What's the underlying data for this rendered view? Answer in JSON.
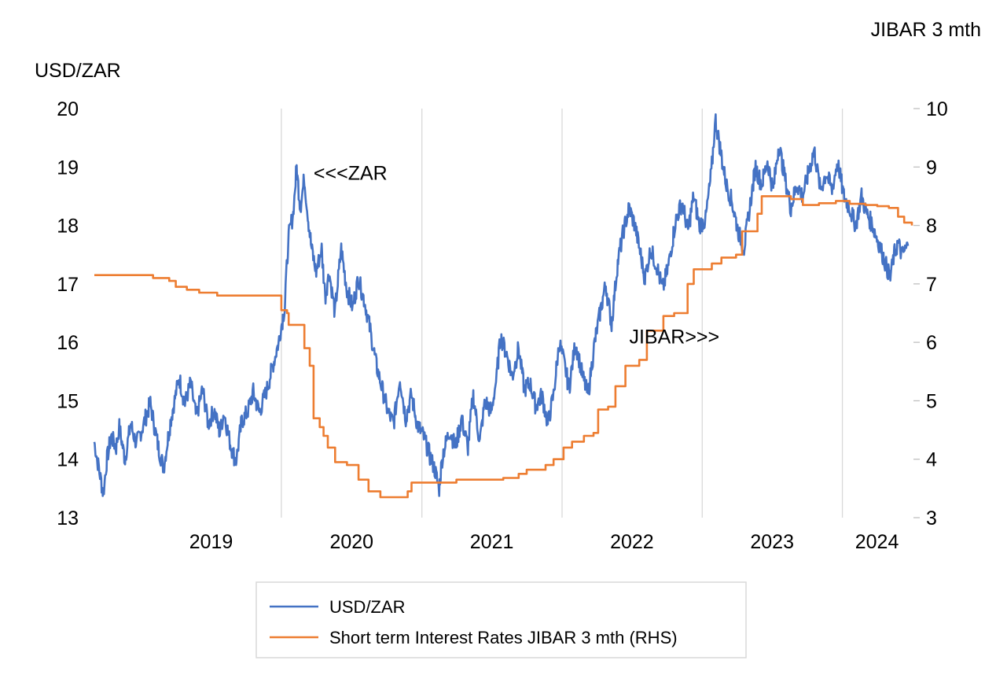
{
  "chart_data": {
    "type": "line",
    "y_left_label": "USD/ZAR",
    "y_right_label": "JIBAR 3 mth",
    "x_ticks": [
      "2019",
      "2020",
      "2021",
      "2022",
      "2023",
      "2024"
    ],
    "y_left_ticks": [
      13,
      14,
      15,
      16,
      17,
      18,
      19,
      20
    ],
    "y_right_ticks": [
      3,
      4,
      5,
      6,
      7,
      8,
      9,
      10
    ],
    "y_left_range": [
      13,
      20
    ],
    "y_right_range": [
      3,
      10
    ],
    "x_range": [
      "2018-09-01",
      "2024-06-30"
    ],
    "grid": "vertical lines at year boundaries",
    "annotations": [
      {
        "text": "<<<ZAR",
        "date": "2020-03-25",
        "value": 18.9,
        "axis": "left"
      },
      {
        "text": "JIBAR>>>",
        "date": "2022-06-25",
        "value": 6.1,
        "axis": "right"
      }
    ],
    "legend": {
      "placement": "bottom",
      "entries": [
        "USD/ZAR",
        "Short term Interest Rates JIBAR 3 mth (RHS)"
      ]
    },
    "colors": {
      "usd_zar": "#4472C4",
      "jibar": "#ED7D31"
    },
    "series": [
      {
        "name": "USD/ZAR",
        "axis": "left",
        "points": [
          [
            "2018-09-01",
            14.3
          ],
          [
            "2018-09-10",
            13.95
          ],
          [
            "2018-09-25",
            13.4
          ],
          [
            "2018-10-03",
            13.95
          ],
          [
            "2018-10-15",
            14.4
          ],
          [
            "2018-10-28",
            14.2
          ],
          [
            "2018-11-05",
            14.55
          ],
          [
            "2018-11-20",
            14.0
          ],
          [
            "2018-12-05",
            14.6
          ],
          [
            "2018-12-20",
            14.25
          ],
          [
            "2019-01-05",
            14.55
          ],
          [
            "2019-01-25",
            14.95
          ],
          [
            "2019-02-15",
            14.2
          ],
          [
            "2019-03-01",
            13.85
          ],
          [
            "2019-03-20",
            14.7
          ],
          [
            "2019-04-10",
            15.4
          ],
          [
            "2019-04-25",
            14.95
          ],
          [
            "2019-05-10",
            15.3
          ],
          [
            "2019-05-25",
            14.7
          ],
          [
            "2019-06-10",
            15.2
          ],
          [
            "2019-06-25",
            14.6
          ],
          [
            "2019-07-10",
            14.85
          ],
          [
            "2019-07-25",
            14.45
          ],
          [
            "2019-08-05",
            14.8
          ],
          [
            "2019-08-20",
            14.3
          ],
          [
            "2019-09-05",
            13.95
          ],
          [
            "2019-09-20",
            14.65
          ],
          [
            "2019-10-05",
            14.8
          ],
          [
            "2019-10-20",
            15.15
          ],
          [
            "2019-11-05",
            14.8
          ],
          [
            "2019-11-25",
            15.2
          ],
          [
            "2019-12-10",
            15.6
          ],
          [
            "2019-12-25",
            16.0
          ],
          [
            "2020-01-10",
            16.6
          ],
          [
            "2020-01-20",
            17.8
          ],
          [
            "2020-02-01",
            18.2
          ],
          [
            "2020-02-10",
            19.0
          ],
          [
            "2020-02-20",
            18.3
          ],
          [
            "2020-03-01",
            18.8
          ],
          [
            "2020-03-10",
            18.2
          ],
          [
            "2020-03-20",
            17.6
          ],
          [
            "2020-04-01",
            17.2
          ],
          [
            "2020-04-15",
            17.6
          ],
          [
            "2020-04-25",
            16.8
          ],
          [
            "2020-05-05",
            17.2
          ],
          [
            "2020-05-20",
            16.5
          ],
          [
            "2020-06-05",
            17.6
          ],
          [
            "2020-06-20",
            16.9
          ],
          [
            "2020-07-05",
            16.6
          ],
          [
            "2020-07-20",
            17.1
          ],
          [
            "2020-08-05",
            16.7
          ],
          [
            "2020-08-20",
            16.2
          ],
          [
            "2020-09-05",
            15.6
          ],
          [
            "2020-09-20",
            15.2
          ],
          [
            "2020-10-05",
            14.8
          ],
          [
            "2020-10-20",
            14.6
          ],
          [
            "2020-11-05",
            15.4
          ],
          [
            "2020-11-20",
            14.7
          ],
          [
            "2020-12-05",
            15.1
          ],
          [
            "2020-12-20",
            14.6
          ],
          [
            "2021-01-05",
            14.4
          ],
          [
            "2021-01-20",
            14.1
          ],
          [
            "2021-02-05",
            13.8
          ],
          [
            "2021-02-15",
            13.5
          ],
          [
            "2021-02-25",
            14.1
          ],
          [
            "2021-03-15",
            14.5
          ],
          [
            "2021-03-30",
            14.2
          ],
          [
            "2021-04-15",
            14.7
          ],
          [
            "2021-05-01",
            14.2
          ],
          [
            "2021-05-15",
            15.1
          ],
          [
            "2021-06-01",
            14.3
          ],
          [
            "2021-06-15",
            15.0
          ],
          [
            "2021-07-01",
            14.8
          ],
          [
            "2021-07-15",
            15.4
          ],
          [
            "2021-07-25",
            16.1
          ],
          [
            "2021-08-10",
            15.8
          ],
          [
            "2021-08-25",
            15.4
          ],
          [
            "2021-09-10",
            15.9
          ],
          [
            "2021-09-25",
            15.2
          ],
          [
            "2021-10-10",
            15.3
          ],
          [
            "2021-10-25",
            14.9
          ],
          [
            "2021-11-10",
            15.1
          ],
          [
            "2021-11-25",
            14.6
          ],
          [
            "2021-12-10",
            15.1
          ],
          [
            "2021-12-25",
            16.0
          ],
          [
            "2022-01-05",
            15.7
          ],
          [
            "2022-01-20",
            15.2
          ],
          [
            "2022-02-05",
            16.0
          ],
          [
            "2022-02-25",
            15.4
          ],
          [
            "2022-03-10",
            15.1
          ],
          [
            "2022-03-25",
            15.9
          ],
          [
            "2022-04-10",
            16.5
          ],
          [
            "2022-04-25",
            17.0
          ],
          [
            "2022-05-10",
            16.3
          ],
          [
            "2022-05-25",
            17.3
          ],
          [
            "2022-06-10",
            17.9
          ],
          [
            "2022-06-25",
            18.3
          ],
          [
            "2022-07-10",
            18.0
          ],
          [
            "2022-07-25",
            17.5
          ],
          [
            "2022-08-05",
            17.1
          ],
          [
            "2022-08-20",
            17.6
          ],
          [
            "2022-09-05",
            17.3
          ],
          [
            "2022-09-20",
            16.9
          ],
          [
            "2022-10-05",
            17.3
          ],
          [
            "2022-10-25",
            18.1
          ],
          [
            "2022-11-10",
            18.4
          ],
          [
            "2022-11-25",
            17.9
          ],
          [
            "2022-12-10",
            18.5
          ],
          [
            "2022-12-25",
            18.0
          ],
          [
            "2023-01-10",
            18.1
          ],
          [
            "2023-01-25",
            18.9
          ],
          [
            "2023-02-05",
            19.8
          ],
          [
            "2023-02-20",
            19.2
          ],
          [
            "2023-03-05",
            18.7
          ],
          [
            "2023-03-20",
            18.4
          ],
          [
            "2023-04-05",
            17.9
          ],
          [
            "2023-04-20",
            17.6
          ],
          [
            "2023-05-05",
            18.3
          ],
          [
            "2023-05-20",
            19.0
          ],
          [
            "2023-06-05",
            18.7
          ],
          [
            "2023-06-20",
            19.1
          ],
          [
            "2023-07-05",
            18.6
          ],
          [
            "2023-07-20",
            19.4
          ],
          [
            "2023-08-05",
            18.8
          ],
          [
            "2023-08-20",
            18.3
          ],
          [
            "2023-09-05",
            18.7
          ],
          [
            "2023-09-20",
            18.5
          ],
          [
            "2023-10-05",
            18.9
          ],
          [
            "2023-10-20",
            19.3
          ],
          [
            "2023-11-05",
            18.6
          ],
          [
            "2023-11-20",
            18.9
          ],
          [
            "2023-12-05",
            18.6
          ],
          [
            "2023-12-20",
            19.1
          ],
          [
            "2024-01-05",
            18.5
          ],
          [
            "2024-01-20",
            18.3
          ],
          [
            "2024-02-05",
            18.0
          ],
          [
            "2024-02-20",
            18.5
          ],
          [
            "2024-03-05",
            18.2
          ],
          [
            "2024-03-20",
            18.0
          ],
          [
            "2024-04-05",
            17.7
          ],
          [
            "2024-04-20",
            17.4
          ],
          [
            "2024-05-05",
            17.1
          ],
          [
            "2024-05-15",
            17.5
          ],
          [
            "2024-05-25",
            17.7
          ],
          [
            "2024-06-05",
            17.5
          ],
          [
            "2024-06-20",
            17.65
          ]
        ]
      },
      {
        "name": "Short term Interest Rates JIBAR 3 mth (RHS)",
        "axis": "right",
        "points": [
          [
            "2018-09-01",
            7.15
          ],
          [
            "2019-01-31",
            7.15
          ],
          [
            "2019-02-01",
            7.1
          ],
          [
            "2019-03-15",
            7.05
          ],
          [
            "2019-04-01",
            6.95
          ],
          [
            "2019-04-30",
            6.9
          ],
          [
            "2019-06-01",
            6.85
          ],
          [
            "2019-07-18",
            6.8
          ],
          [
            "2019-12-31",
            6.8
          ],
          [
            "2020-01-01",
            6.55
          ],
          [
            "2020-01-16",
            6.5
          ],
          [
            "2020-01-20",
            6.3
          ],
          [
            "2020-02-20",
            6.3
          ],
          [
            "2020-03-01",
            5.9
          ],
          [
            "2020-03-15",
            5.6
          ],
          [
            "2020-03-25",
            4.7
          ],
          [
            "2020-04-10",
            4.55
          ],
          [
            "2020-04-20",
            4.4
          ],
          [
            "2020-05-01",
            4.2
          ],
          [
            "2020-05-20",
            3.95
          ],
          [
            "2020-06-20",
            3.9
          ],
          [
            "2020-07-20",
            3.65
          ],
          [
            "2020-08-15",
            3.45
          ],
          [
            "2020-09-15",
            3.35
          ],
          [
            "2020-11-15",
            3.35
          ],
          [
            "2020-11-25",
            3.45
          ],
          [
            "2020-12-05",
            3.6
          ],
          [
            "2021-04-01",
            3.65
          ],
          [
            "2021-07-01",
            3.65
          ],
          [
            "2021-08-01",
            3.68
          ],
          [
            "2021-09-10",
            3.75
          ],
          [
            "2021-10-01",
            3.82
          ],
          [
            "2021-11-19",
            3.9
          ],
          [
            "2021-12-10",
            4.0
          ],
          [
            "2022-01-05",
            4.2
          ],
          [
            "2022-01-27",
            4.3
          ],
          [
            "2022-02-27",
            4.4
          ],
          [
            "2022-03-24",
            4.45
          ],
          [
            "2022-04-05",
            4.85
          ],
          [
            "2022-05-01",
            4.9
          ],
          [
            "2022-05-20",
            5.25
          ],
          [
            "2022-06-15",
            5.6
          ],
          [
            "2022-07-21",
            5.7
          ],
          [
            "2022-08-10",
            6.2
          ],
          [
            "2022-09-22",
            6.45
          ],
          [
            "2022-10-20",
            6.5
          ],
          [
            "2022-11-24",
            7.0
          ],
          [
            "2022-12-10",
            7.25
          ],
          [
            "2023-01-26",
            7.35
          ],
          [
            "2023-02-20",
            7.45
          ],
          [
            "2023-03-30",
            7.5
          ],
          [
            "2023-04-15",
            7.9
          ],
          [
            "2023-05-25",
            8.2
          ],
          [
            "2023-06-05",
            8.5
          ],
          [
            "2023-07-20",
            8.5
          ],
          [
            "2023-08-20",
            8.45
          ],
          [
            "2023-09-20",
            8.35
          ],
          [
            "2023-11-01",
            8.38
          ],
          [
            "2023-12-15",
            8.42
          ],
          [
            "2024-01-20",
            8.37
          ],
          [
            "2024-03-01",
            8.35
          ],
          [
            "2024-04-01",
            8.33
          ],
          [
            "2024-05-01",
            8.3
          ],
          [
            "2024-05-25",
            8.15
          ],
          [
            "2024-06-10",
            8.05
          ],
          [
            "2024-06-30",
            8.0
          ]
        ]
      }
    ]
  }
}
